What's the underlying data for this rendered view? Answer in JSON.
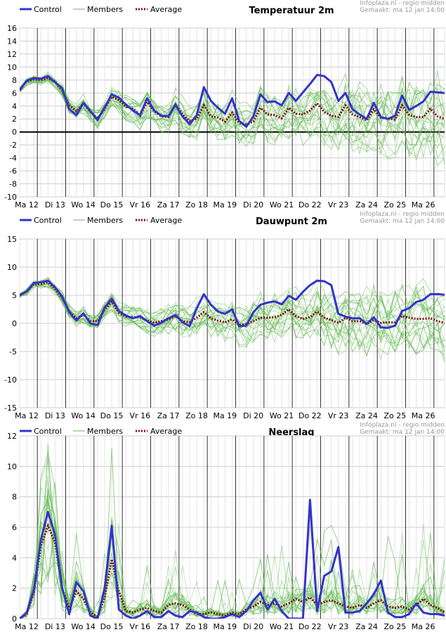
{
  "source_line": "Infoplaza.nl - regio midden",
  "made_line": "Gemaakt: ma 12 jan 14:00",
  "legend": {
    "control": "Control",
    "members": "Members",
    "average": "Average"
  },
  "colors": {
    "control": "#3333cc",
    "members": "#66bb55",
    "average": "#7a1010",
    "grid": "#cccccc",
    "day_line": "#333333"
  },
  "chart_data": [
    {
      "type": "line",
      "title": "Temperatuur 2m",
      "x_start": "2015-01-12T00:00",
      "x_step_hours": 6,
      "x_tick_labels": [
        "Ma 12",
        "Di 13",
        "Wo 14",
        "Do 15",
        "Vr 16",
        "Za 17",
        "Zo 18",
        "Ma 19",
        "Di 20",
        "Wo 21",
        "Do 22",
        "Vr 23",
        "Za 24",
        "Zo 25",
        "Ma 26"
      ],
      "ylim": [
        -10,
        16
      ],
      "ytick_step": 2,
      "zero_line": true,
      "series": [
        {
          "name": "Control",
          "values": [
            6.4,
            7.9,
            8.3,
            8.2,
            8.6,
            7.7,
            6.7,
            3.5,
            2.6,
            4.5,
            3.2,
            1.8,
            3.8,
            5.8,
            5.3,
            4.2,
            3.3,
            2.6,
            5.2,
            3.3,
            2.5,
            2.4,
            4.2,
            2.4,
            1.2,
            2.6,
            6.9,
            4.8,
            3.7,
            2.8,
            5.2,
            1.7,
            0.8,
            2.4,
            5.8,
            4.6,
            4.7,
            4.1,
            6.0,
            4.8,
            6.1,
            7.4,
            8.8,
            8.6,
            7.7,
            4.8,
            6.0,
            3.5,
            2.7,
            2.0,
            4.5,
            2.3,
            2.0,
            2.5,
            5.6,
            3.4,
            4.0,
            4.7,
            6.2,
            6.1,
            6.0
          ]
        },
        {
          "name": "Average",
          "values": [
            6.6,
            7.8,
            8.1,
            8.0,
            8.3,
            7.7,
            6.4,
            4.1,
            3.2,
            4.4,
            3.1,
            2.1,
            3.6,
            5.4,
            4.9,
            3.9,
            3.6,
            2.5,
            4.6,
            3.2,
            2.4,
            2.3,
            4.2,
            2.7,
            1.7,
            2.0,
            4.1,
            2.4,
            2.2,
            1.6,
            3.0,
            1.4,
            1.2,
            1.6,
            3.7,
            2.7,
            2.6,
            2.1,
            3.7,
            2.8,
            2.7,
            3.3,
            4.4,
            3.1,
            2.5,
            2.3,
            4.1,
            2.7,
            2.3,
            1.8,
            3.5,
            2.2,
            2.1,
            1.9,
            4.1,
            2.6,
            2.3,
            2.3,
            3.6,
            2.4,
            2.0
          ]
        }
      ],
      "members_count": 20,
      "members_spread_degC": [
        0.4,
        0.6,
        0.6,
        0.7,
        0.8,
        0.9,
        1.0,
        1.0,
        1.0,
        1.2,
        1.2,
        1.4,
        1.5,
        1.6,
        1.7,
        1.8,
        1.8,
        1.9,
        2.0,
        2.0,
        2.1,
        2.2,
        2.3,
        2.4,
        2.5,
        2.6,
        2.7,
        2.8,
        2.9,
        3.0,
        3.0,
        3.1,
        3.2,
        3.3,
        3.4,
        3.5,
        3.6,
        3.7,
        3.8,
        3.9,
        4.0,
        4.1,
        4.2,
        4.3,
        4.4,
        4.5,
        4.6,
        4.7,
        4.8,
        4.9,
        5.0,
        5.1,
        5.2,
        5.3,
        5.4,
        5.5,
        5.6,
        5.7,
        5.8,
        5.9,
        6.0
      ]
    },
    {
      "type": "line",
      "title": "Dauwpunt 2m",
      "x_start": "2015-01-12T00:00",
      "x_step_hours": 6,
      "x_tick_labels": [
        "Ma 12",
        "Di 13",
        "Wo 14",
        "Do 15",
        "Vr 16",
        "Za 17",
        "Zo 18",
        "Ma 19",
        "Di 20",
        "Wo 21",
        "Do 22",
        "Vr 23",
        "Za 24",
        "Zo 25",
        "Ma 26"
      ],
      "ylim": [
        -15,
        15
      ],
      "ytick_step": 5,
      "zero_line": false,
      "series": [
        {
          "name": "Control",
          "values": [
            5.0,
            5.7,
            7.2,
            7.3,
            7.6,
            6.4,
            4.8,
            2.0,
            0.5,
            1.8,
            0.0,
            -0.3,
            2.8,
            4.4,
            2.2,
            1.4,
            0.9,
            1.3,
            0.4,
            -0.4,
            0.1,
            0.9,
            1.5,
            0.2,
            -0.5,
            2.7,
            5.2,
            3.3,
            2.1,
            1.7,
            2.5,
            -0.5,
            -0.4,
            2.0,
            3.3,
            3.7,
            3.9,
            3.4,
            4.9,
            4.2,
            5.6,
            6.8,
            7.6,
            7.5,
            6.8,
            1.7,
            1.2,
            0.9,
            0.9,
            -0.1,
            1.1,
            -0.7,
            -0.8,
            -0.4,
            2.2,
            2.7,
            3.8,
            4.2,
            5.2,
            5.2,
            5.1
          ]
        },
        {
          "name": "Average",
          "values": [
            5.0,
            5.6,
            7.0,
            7.0,
            7.3,
            6.1,
            4.5,
            2.1,
            0.9,
            1.5,
            0.4,
            0.4,
            2.4,
            3.9,
            1.9,
            1.2,
            1.1,
            1.1,
            0.5,
            0.1,
            0.4,
            0.7,
            1.3,
            0.4,
            0.2,
            1.0,
            2.0,
            0.9,
            0.5,
            0.2,
            0.7,
            -0.3,
            -0.1,
            0.4,
            1.0,
            1.0,
            1.1,
            1.5,
            2.5,
            1.3,
            0.8,
            1.1,
            2.1,
            1.0,
            0.6,
            0.1,
            1.0,
            0.4,
            0.4,
            -0.1,
            0.6,
            0.1,
            0.2,
            0.2,
            1.3,
            1.0,
            0.8,
            0.8,
            0.9,
            0.4,
            0.1
          ]
        }
      ],
      "members_count": 20,
      "members_spread_degC": [
        0.4,
        0.6,
        0.6,
        0.7,
        0.8,
        0.9,
        1.0,
        1.1,
        1.2,
        1.3,
        1.3,
        1.4,
        1.5,
        1.6,
        1.7,
        1.8,
        1.9,
        2.0,
        2.1,
        2.2,
        2.3,
        2.4,
        2.5,
        2.6,
        2.7,
        2.8,
        2.9,
        3.0,
        3.1,
        3.2,
        3.3,
        3.4,
        3.5,
        3.6,
        3.7,
        3.8,
        3.9,
        4.0,
        4.1,
        4.2,
        4.3,
        4.4,
        4.5,
        4.6,
        4.7,
        4.8,
        4.9,
        5.0,
        5.1,
        5.2,
        5.3,
        5.4,
        5.5,
        5.6,
        5.7,
        5.8,
        5.9,
        6.0,
        6.1,
        6.2,
        6.3
      ]
    },
    {
      "type": "line",
      "title": "Neerslag",
      "x_start": "2015-01-12T00:00",
      "x_step_hours": 6,
      "x_tick_labels": [
        "Ma 12",
        "Di 13",
        "Wo 14",
        "Do 15",
        "Vr 16",
        "Za 17",
        "Zo 18",
        "Ma 19",
        "Di 20",
        "Wo 21",
        "Do 22",
        "Vr 23",
        "Za 24",
        "Zo 25",
        "Ma 26"
      ],
      "ylim": [
        0,
        12
      ],
      "ytick_step": 2,
      "zero_line": false,
      "series": [
        {
          "name": "Control",
          "values": [
            0.0,
            0.4,
            1.9,
            5.2,
            7.0,
            5.5,
            2.0,
            0.3,
            2.4,
            1.8,
            0.2,
            0.0,
            2.0,
            6.1,
            0.6,
            0.2,
            0.0,
            0.2,
            0.5,
            0.1,
            0.1,
            0.5,
            0.2,
            0.1,
            0.5,
            0.4,
            0.1,
            0.0,
            0.0,
            0.1,
            0.3,
            0.1,
            0.5,
            1.2,
            1.7,
            0.6,
            1.3,
            0.5,
            0.0,
            0.0,
            0.0,
            7.8,
            0.5,
            2.8,
            3.1,
            4.7,
            0.4,
            0.4,
            0.5,
            1.0,
            1.6,
            2.5,
            0.4,
            0.1,
            0.1,
            0.3,
            1.0,
            0.4,
            0.3,
            0.3,
            0.2
          ]
        },
        {
          "name": "Average",
          "values": [
            0.0,
            0.3,
            1.7,
            4.8,
            6.1,
            5.0,
            2.0,
            0.7,
            1.8,
            1.3,
            0.4,
            0.1,
            1.4,
            3.9,
            1.8,
            0.5,
            0.4,
            0.6,
            0.7,
            0.5,
            0.4,
            0.9,
            1.0,
            0.9,
            0.6,
            0.3,
            0.3,
            0.4,
            0.3,
            0.2,
            0.4,
            0.3,
            0.6,
            0.8,
            1.1,
            0.9,
            1.0,
            0.8,
            1.0,
            1.3,
            1.1,
            1.4,
            0.9,
            1.1,
            1.2,
            1.0,
            0.8,
            0.7,
            0.9,
            0.7,
            1.0,
            1.2,
            0.8,
            0.7,
            0.8,
            0.6,
            0.9,
            1.3,
            0.9,
            0.7,
            0.4
          ]
        }
      ],
      "members_count": 20,
      "members_spread_mm": [
        0.1,
        0.4,
        1.0,
        1.8,
        2.2,
        2.0,
        1.5,
        1.0,
        1.3,
        1.2,
        0.8,
        0.6,
        1.4,
        2.6,
        1.6,
        1.0,
        0.9,
        1.1,
        1.2,
        1.0,
        1.0,
        1.3,
        1.4,
        1.3,
        1.1,
        1.0,
        1.0,
        1.1,
        1.0,
        1.0,
        1.2,
        1.1,
        1.3,
        1.5,
        1.7,
        1.6,
        1.8,
        1.7,
        1.9,
        2.1,
        2.0,
        2.2,
        1.9,
        2.0,
        2.1,
        2.0,
        1.8,
        1.7,
        1.9,
        1.8,
        2.0,
        2.2,
        1.9,
        1.8,
        1.9,
        1.8,
        2.0,
        2.4,
        2.0,
        1.8,
        1.5
      ]
    }
  ]
}
